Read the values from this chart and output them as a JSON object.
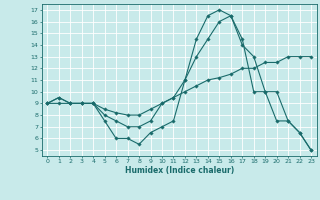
{
  "xlabel": "Humidex (Indice chaleur)",
  "xlim": [
    -0.5,
    23.5
  ],
  "ylim": [
    4.5,
    17.5
  ],
  "xticks": [
    0,
    1,
    2,
    3,
    4,
    5,
    6,
    7,
    8,
    9,
    10,
    11,
    12,
    13,
    14,
    15,
    16,
    17,
    18,
    19,
    20,
    21,
    22,
    23
  ],
  "yticks": [
    5,
    6,
    7,
    8,
    9,
    10,
    11,
    12,
    13,
    14,
    15,
    16,
    17
  ],
  "bg_color": "#c8eaea",
  "grid_color": "#aad4d4",
  "line_color": "#1a6b6b",
  "series": [
    {
      "x": [
        0,
        1,
        2,
        3,
        4,
        5,
        6,
        7,
        8,
        9,
        10,
        11,
        12,
        13,
        14,
        15,
        16,
        17,
        18,
        19,
        20,
        21,
        22,
        23
      ],
      "y": [
        9,
        9.5,
        9,
        9,
        9,
        7.5,
        6,
        6,
        5.5,
        6.5,
        7,
        7.5,
        11,
        14.5,
        16.5,
        17,
        16.5,
        14,
        13,
        10,
        10,
        7.5,
        6.5,
        5
      ]
    },
    {
      "x": [
        0,
        1,
        2,
        3,
        4,
        5,
        6,
        7,
        8,
        9,
        10,
        11,
        12,
        13,
        14,
        15,
        16,
        17,
        18,
        19,
        20,
        21,
        22,
        23
      ],
      "y": [
        9,
        9,
        9,
        9,
        9,
        8.5,
        8.2,
        8.0,
        8.0,
        8.5,
        9,
        9.5,
        10,
        10.5,
        11,
        11.2,
        11.5,
        12,
        12,
        12.5,
        12.5,
        13,
        13,
        13
      ]
    },
    {
      "x": [
        0,
        1,
        2,
        3,
        4,
        5,
        6,
        7,
        8,
        9,
        10,
        11,
        12,
        13,
        14,
        15,
        16,
        17,
        18,
        19,
        20,
        21,
        22,
        23
      ],
      "y": [
        9,
        9.5,
        9,
        9,
        9,
        8,
        7.5,
        7,
        7,
        7.5,
        9,
        9.5,
        11,
        13,
        14.5,
        16,
        16.5,
        14.5,
        10,
        10,
        7.5,
        7.5,
        6.5,
        5
      ]
    }
  ]
}
